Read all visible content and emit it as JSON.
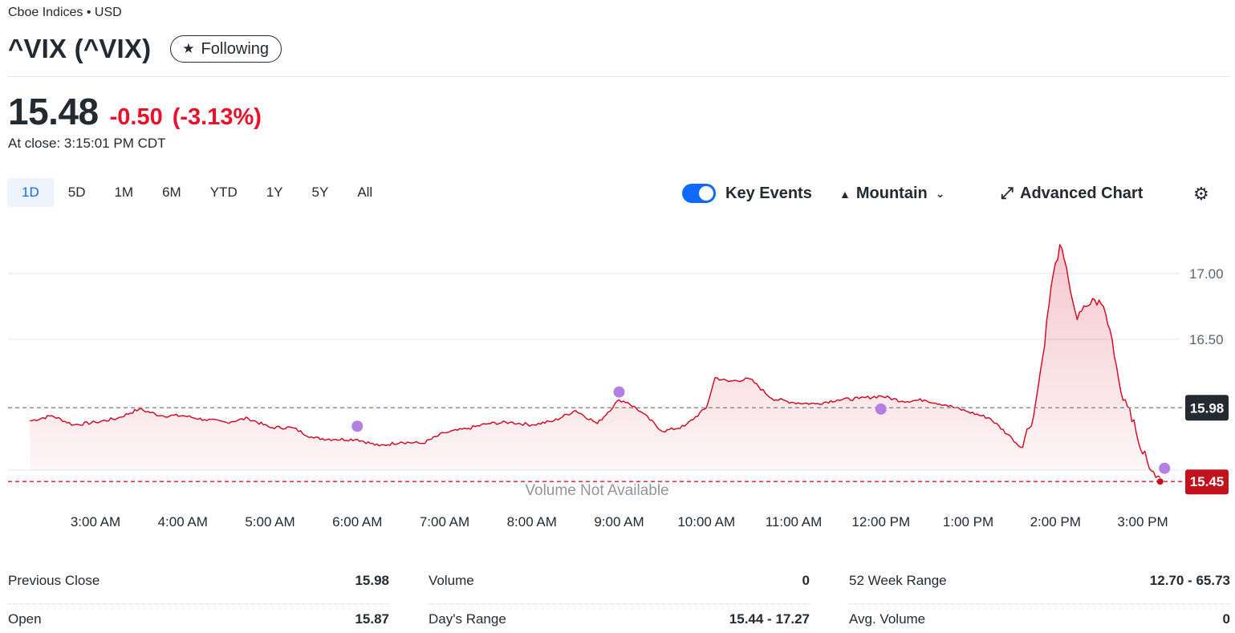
{
  "header": {
    "exchange": "Cboe Indices • USD",
    "title": "^VIX (^VIX)",
    "follow_label": "Following"
  },
  "quote": {
    "price": "15.48",
    "change": "-0.50",
    "change_pct": "(-3.13%)",
    "close_time": "At close: 3:15:01 PM CDT"
  },
  "toolbar": {
    "ranges": [
      "1D",
      "5D",
      "1M",
      "6M",
      "YTD",
      "1Y",
      "5Y",
      "All"
    ],
    "active_range": "1D",
    "key_events_label": "Key Events",
    "key_events_on": true,
    "chart_type_label": "Mountain",
    "advanced_label": "Advanced Chart"
  },
  "colors": {
    "line": "#d0001c",
    "negative": "#eb0f29",
    "event_dot": "#b37fe3",
    "toggle": "#0f69ff",
    "prev_close_badge": "#232a31",
    "last_badge": "#c3101d"
  },
  "chart_data": {
    "type": "area",
    "x_ticks": [
      "3:00 AM",
      "4:00 AM",
      "5:00 AM",
      "6:00 AM",
      "7:00 AM",
      "8:00 AM",
      "9:00 AM",
      "10:00 AM",
      "11:00 AM",
      "12:00 PM",
      "1:00 PM",
      "2:00 PM",
      "3:00 PM"
    ],
    "y_ticks": [
      "17.00",
      "16.50"
    ],
    "ylim": [
      15.42,
      17.3
    ],
    "previous_close": 15.98,
    "previous_close_label": "15.98",
    "last_value": 15.45,
    "last_label": "15.45",
    "volume_note": "Volume Not Available",
    "series": [
      {
        "x": [
          2.25,
          2.5,
          2.75,
          3.0,
          3.25,
          3.5,
          3.75,
          4.0,
          4.25,
          4.5,
          4.75,
          5.0,
          5.25,
          5.5,
          5.75,
          6.0,
          6.25,
          6.5,
          6.75,
          7.0,
          7.25,
          7.5,
          7.75,
          8.0,
          8.25,
          8.5,
          8.75,
          9.0,
          9.1,
          9.25,
          9.5,
          9.75,
          10.0,
          10.1,
          10.25,
          10.5,
          10.75,
          11.0,
          11.25,
          11.5,
          11.75,
          12.0,
          12.25,
          12.5,
          12.75,
          13.0,
          13.25,
          13.5,
          13.6,
          13.75,
          13.85,
          13.95,
          14.05,
          14.15,
          14.25,
          14.35,
          14.45,
          14.55,
          14.65,
          14.75,
          14.85,
          14.95,
          15.05,
          15.1,
          15.15,
          15.2
        ],
        "y": [
          15.88,
          15.92,
          15.85,
          15.87,
          15.9,
          15.97,
          15.92,
          15.92,
          15.89,
          15.87,
          15.9,
          15.83,
          15.83,
          15.75,
          15.74,
          15.74,
          15.69,
          15.72,
          15.71,
          15.79,
          15.82,
          15.86,
          15.87,
          15.85,
          15.88,
          15.96,
          15.86,
          16.04,
          16.02,
          15.95,
          15.8,
          15.84,
          15.98,
          16.21,
          16.18,
          16.2,
          16.05,
          16.02,
          16.01,
          16.04,
          16.05,
          16.07,
          16.03,
          16.04,
          16.0,
          15.95,
          15.9,
          15.75,
          15.68,
          15.92,
          16.35,
          16.9,
          17.22,
          16.95,
          16.65,
          16.75,
          16.8,
          16.75,
          16.5,
          16.1,
          15.98,
          15.72,
          15.58,
          15.5,
          15.45,
          15.45
        ]
      }
    ],
    "key_events": [
      {
        "x": 6.0,
        "y": 15.84
      },
      {
        "x": 9.0,
        "y": 16.1
      },
      {
        "x": 12.0,
        "y": 15.97
      },
      {
        "x": 15.25,
        "y": 15.52
      }
    ]
  },
  "stats": [
    [
      {
        "label": "Previous Close",
        "value": "15.98"
      },
      {
        "label": "Open",
        "value": "15.87"
      }
    ],
    [
      {
        "label": "Volume",
        "value": "0"
      },
      {
        "label": "Day's Range",
        "value": "15.44 - 17.27"
      }
    ],
    [
      {
        "label": "52 Week Range",
        "value": "12.70 - 65.73"
      },
      {
        "label": "Avg. Volume",
        "value": "0"
      }
    ]
  ]
}
